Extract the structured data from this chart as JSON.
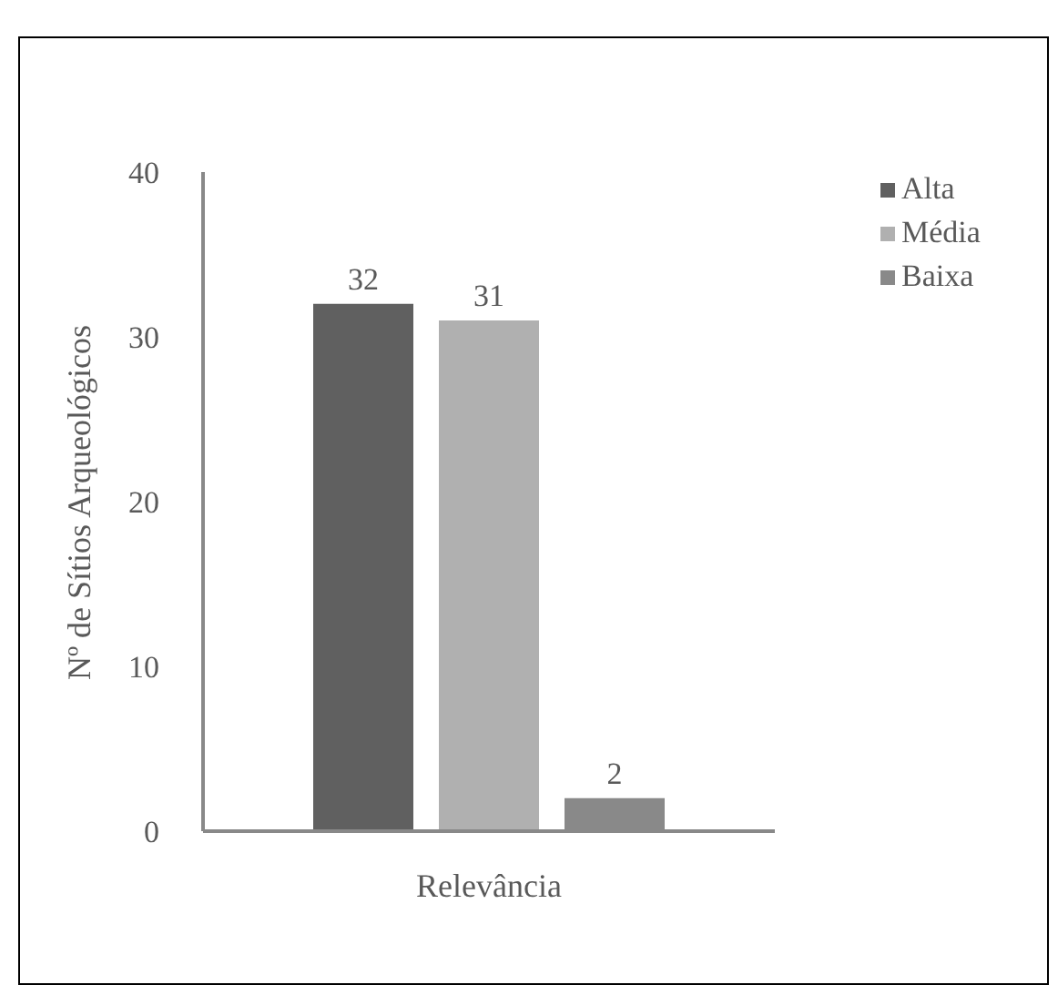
{
  "chart_data": {
    "type": "bar",
    "categories": [
      null,
      null,
      null
    ],
    "xlabel": "Relevância",
    "tick_labels": "y",
    "series": [
      {
        "name": "Alta",
        "color": "#606060",
        "values": [
          32,
          null,
          null
        ]
      },
      {
        "name": "Média",
        "color": "#b0b0b0",
        "values": [
          null,
          31,
          null
        ]
      },
      {
        "name": "Baixa",
        "color": "#898989",
        "values": [
          null,
          null,
          2
        ]
      }
    ],
    "ylabel": "Nº de Sítios Arqueológicos",
    "ylim": [
      0,
      40
    ],
    "yticks": [
      0,
      10,
      20,
      30,
      40
    ],
    "grid": false,
    "legend": "top right",
    "data_labels": true
  }
}
